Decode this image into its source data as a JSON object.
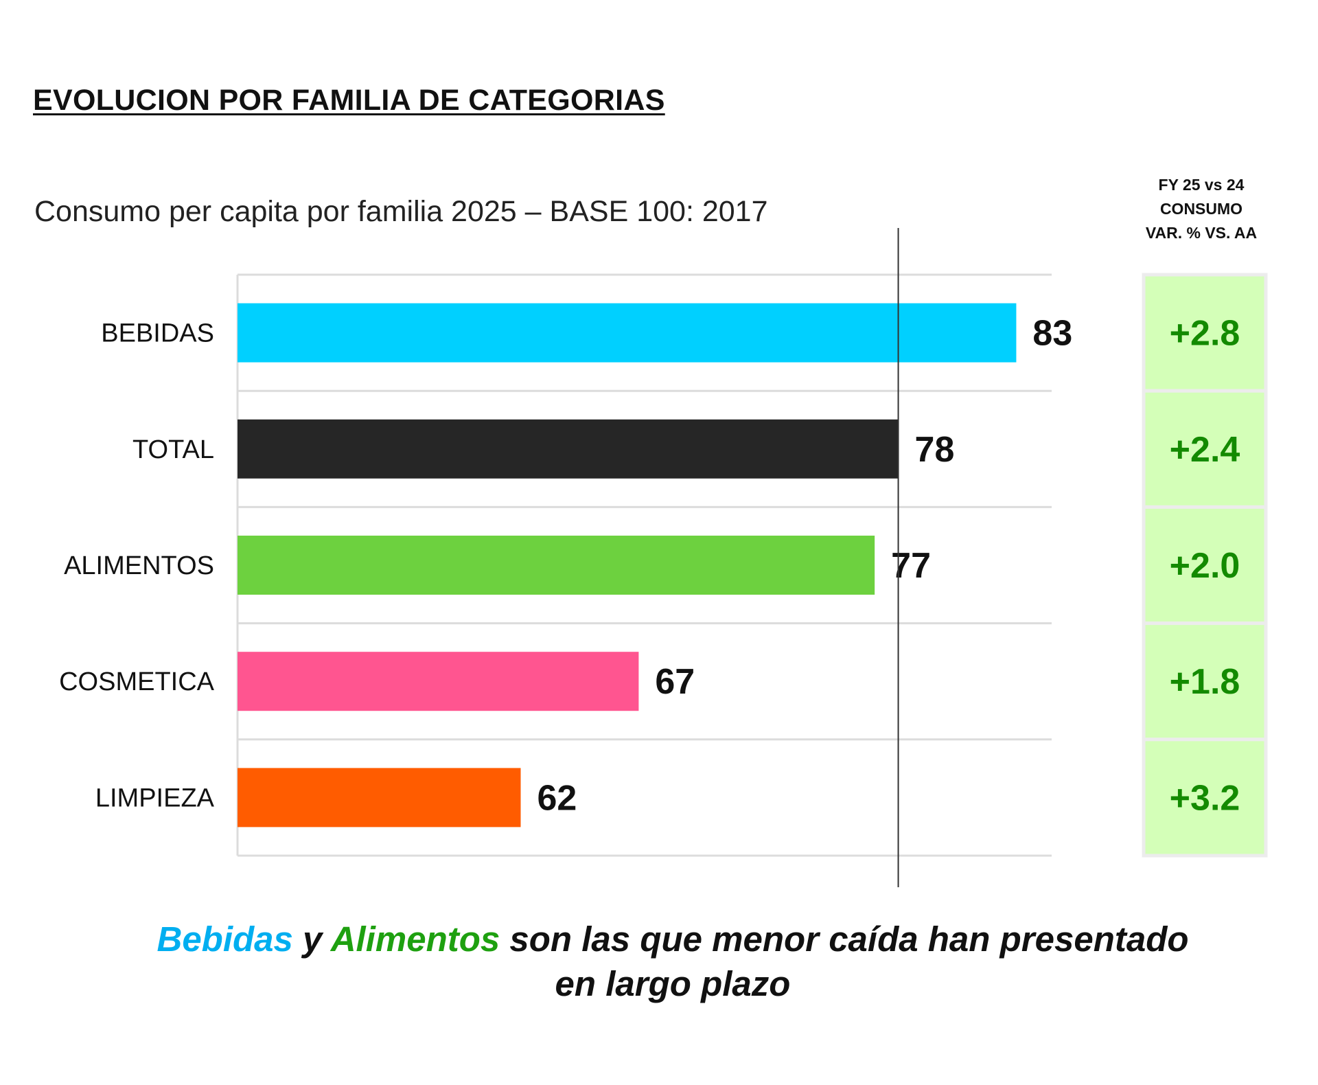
{
  "title": "EVOLUCION  POR FAMILIA DE CATEGORIAS",
  "subtitle": "Consumo per capita por familia 2025 – BASE 100: 2017",
  "var_header": [
    "FY 25 vs 24",
    "CONSUMO",
    "VAR. % VS. AA"
  ],
  "chart_data": {
    "type": "bar",
    "orientation": "horizontal",
    "title": "Consumo per capita por familia 2025 – BASE 100: 2017",
    "categories": [
      "BEBIDAS",
      "TOTAL",
      "ALIMENTOS",
      "COSMETICA",
      "LIMPIEZA"
    ],
    "values": [
      83,
      78,
      77,
      67,
      62
    ],
    "value_labels": [
      "83",
      "78",
      "77",
      "67",
      "62"
    ],
    "colors": [
      "#00d0ff",
      "#262626",
      "#6dd13f",
      "#ff5590",
      "#ff5c00"
    ],
    "reference_line": 78,
    "xlim": [
      50,
      84.5
    ],
    "grid": true,
    "variation_header": "FY 25 vs 24 CONSUMO VAR. % VS. AA",
    "variation": [
      "+2.8",
      "+2.4",
      "+2.0",
      "+1.8",
      "+3.2"
    ],
    "variation_colors": {
      "fill": "#d4ffb8",
      "text": "#138a00"
    }
  },
  "caption": {
    "highlight1": "Bebidas",
    "highlight1_color": "#00aef0",
    "joiner": " y ",
    "highlight2": "Alimentos",
    "highlight2_color": "#1ea010",
    "rest_line1": " son las que menor caída han presentado",
    "line2": "en largo plazo"
  }
}
